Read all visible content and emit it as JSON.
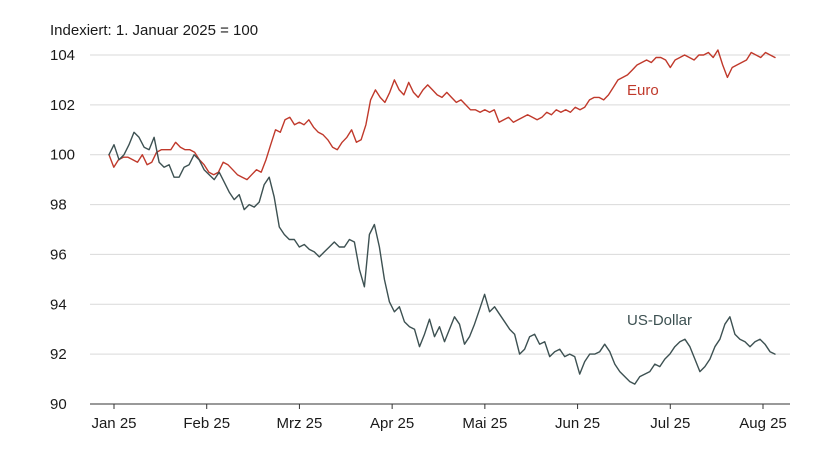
{
  "chart_data": {
    "type": "line",
    "subtitle": "Indexiert: 1. Januar 2025 = 100",
    "ylim": [
      90,
      104
    ],
    "y_ticks": [
      90,
      92,
      94,
      96,
      98,
      100,
      102,
      104
    ],
    "x_ticks": [
      "Jan 25",
      "Feb 25",
      "Mrz 25",
      "Apr 25",
      "Mai 25",
      "Jun 25",
      "Jul 25",
      "Aug 25"
    ],
    "grid": true,
    "series": [
      {
        "name": "Euro",
        "color": "#c0392b",
        "values": [
          100.0,
          99.5,
          99.8,
          99.9,
          99.9,
          99.8,
          99.7,
          100.0,
          99.6,
          99.7,
          100.1,
          100.2,
          100.2,
          100.2,
          100.5,
          100.3,
          100.2,
          100.2,
          100.1,
          99.8,
          99.6,
          99.3,
          99.2,
          99.3,
          99.7,
          99.6,
          99.4,
          99.2,
          99.1,
          99.0,
          99.2,
          99.4,
          99.3,
          99.8,
          100.4,
          101.0,
          100.9,
          101.4,
          101.5,
          101.2,
          101.3,
          101.2,
          101.4,
          101.1,
          100.9,
          100.8,
          100.6,
          100.3,
          100.2,
          100.5,
          100.7,
          101.0,
          100.5,
          100.6,
          101.2,
          102.2,
          102.6,
          102.3,
          102.1,
          102.5,
          103.0,
          102.6,
          102.4,
          102.9,
          102.5,
          102.3,
          102.6,
          102.8,
          102.6,
          102.4,
          102.3,
          102.5,
          102.3,
          102.1,
          102.2,
          102.0,
          101.8,
          101.8,
          101.7,
          101.8,
          101.7,
          101.8,
          101.3,
          101.4,
          101.5,
          101.3,
          101.4,
          101.5,
          101.6,
          101.5,
          101.4,
          101.5,
          101.7,
          101.6,
          101.8,
          101.7,
          101.8,
          101.7,
          101.9,
          101.8,
          101.9,
          102.2,
          102.3,
          102.3,
          102.2,
          102.4,
          102.7,
          103.0,
          103.1,
          103.2,
          103.4,
          103.6,
          103.7,
          103.8,
          103.7,
          103.9,
          103.9,
          103.8,
          103.5,
          103.8,
          103.9,
          104.0,
          103.9,
          103.8,
          104.0,
          104.0,
          104.1,
          103.9,
          104.2,
          103.6,
          103.1,
          103.5,
          103.6,
          103.7,
          103.8,
          104.1,
          104.0,
          103.9,
          104.1,
          104.0,
          103.9
        ]
      },
      {
        "name": "US-Dollar",
        "color": "#3d5152",
        "values": [
          100.0,
          100.4,
          99.8,
          100.0,
          100.4,
          100.9,
          100.7,
          100.3,
          100.2,
          100.7,
          99.7,
          99.5,
          99.6,
          99.1,
          99.1,
          99.5,
          99.6,
          100.0,
          99.8,
          99.4,
          99.2,
          99.0,
          99.3,
          98.9,
          98.5,
          98.2,
          98.4,
          97.8,
          98.0,
          97.9,
          98.1,
          98.8,
          99.1,
          98.3,
          97.1,
          96.8,
          96.6,
          96.6,
          96.3,
          96.4,
          96.2,
          96.1,
          95.9,
          96.1,
          96.3,
          96.5,
          96.3,
          96.3,
          96.6,
          96.5,
          95.4,
          94.7,
          96.8,
          97.2,
          96.3,
          95.0,
          94.1,
          93.7,
          93.9,
          93.3,
          93.1,
          93.0,
          92.3,
          92.8,
          93.4,
          92.7,
          93.1,
          92.5,
          93.0,
          93.5,
          93.2,
          92.4,
          92.7,
          93.2,
          93.8,
          94.4,
          93.7,
          93.9,
          93.6,
          93.3,
          93.0,
          92.8,
          92.0,
          92.2,
          92.7,
          92.8,
          92.4,
          92.5,
          91.9,
          92.1,
          92.2,
          91.9,
          92.0,
          91.9,
          91.2,
          91.7,
          92.0,
          92.0,
          92.1,
          92.4,
          92.1,
          91.6,
          91.3,
          91.1,
          90.9,
          90.8,
          91.1,
          91.2,
          91.3,
          91.6,
          91.5,
          91.8,
          92.0,
          92.3,
          92.5,
          92.6,
          92.3,
          91.8,
          91.3,
          91.5,
          91.8,
          92.3,
          92.6,
          93.2,
          93.5,
          92.8,
          92.6,
          92.5,
          92.3,
          92.5,
          92.6,
          92.4,
          92.1,
          92.0
        ]
      }
    ]
  }
}
